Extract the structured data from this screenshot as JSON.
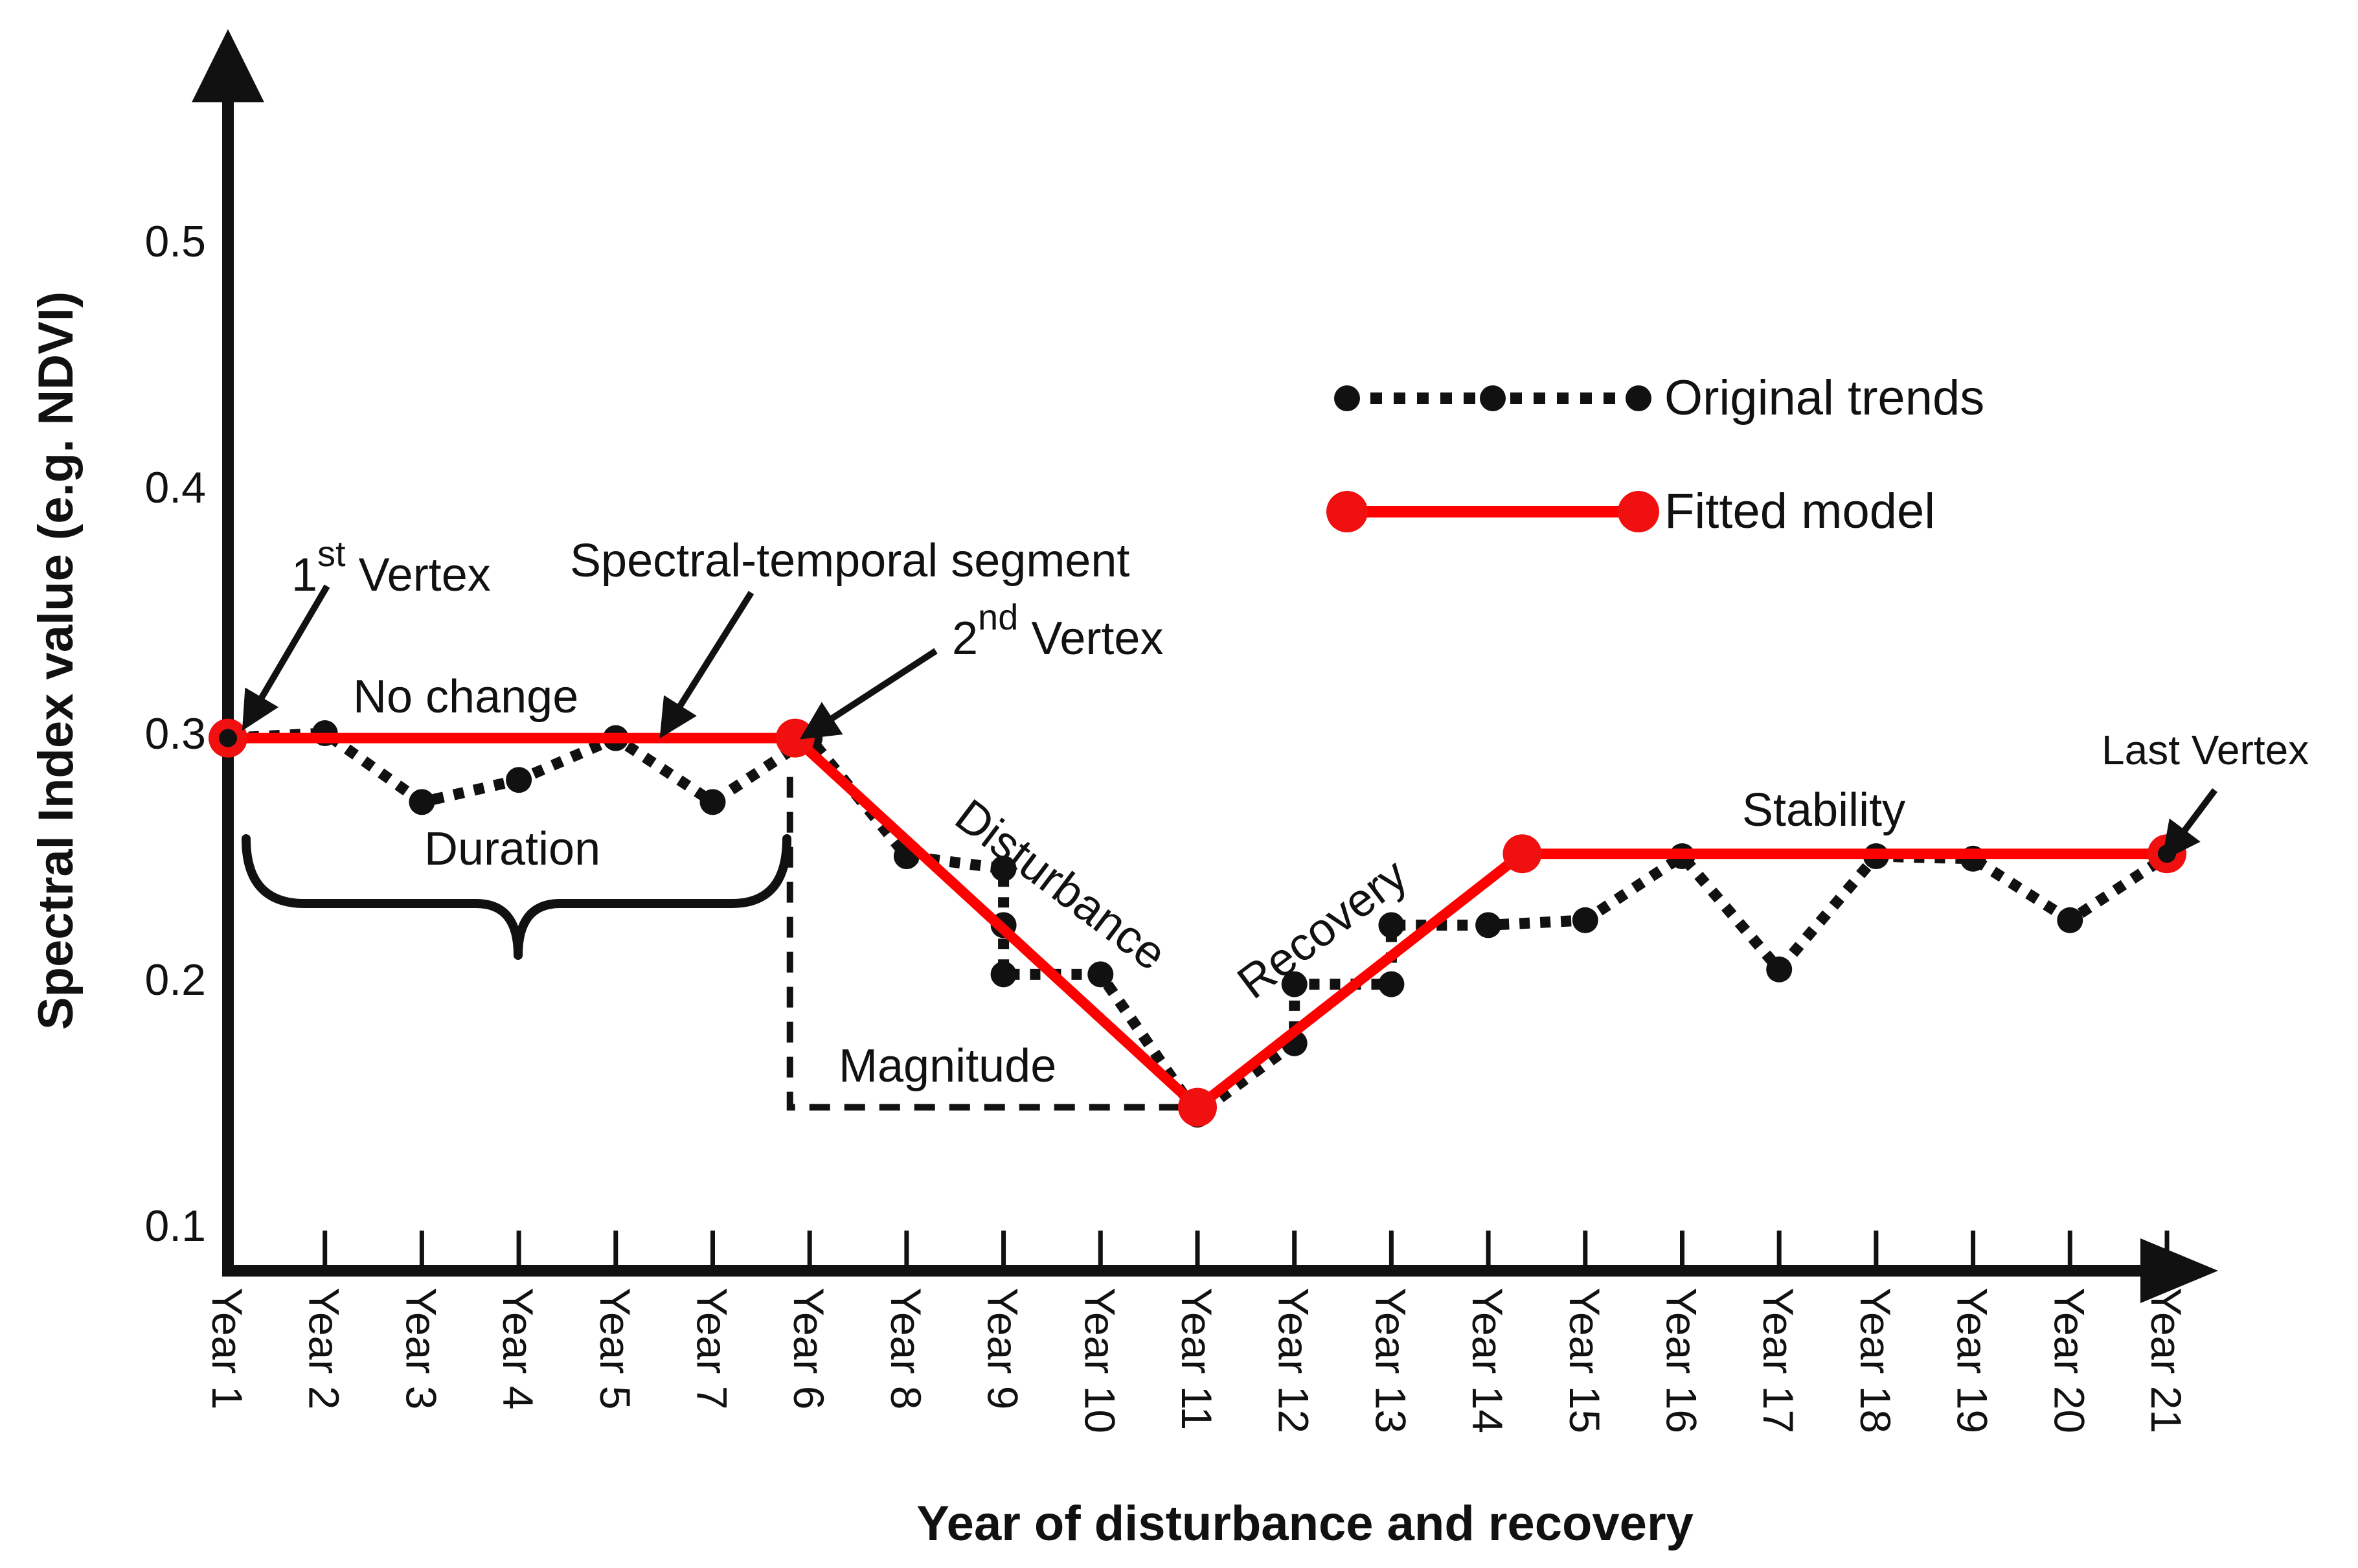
{
  "chart_data": {
    "type": "line",
    "title": "",
    "xlabel": "Year of disturbance and recovery",
    "ylabel": "Spectral Index value (e.g. NDVI)",
    "ylim": [
      0.1,
      0.55
    ],
    "yticks": [
      0.1,
      0.2,
      0.3,
      0.4,
      0.5
    ],
    "ytick_labels": [
      "0.1",
      "0.2",
      "0.3",
      "0.4",
      "0.5"
    ],
    "categories": [
      "Year 1",
      "Year 2",
      "Year 3",
      "Year 4",
      "Year 5",
      "Year 7",
      "Year 6",
      "Year 8",
      "Year 9",
      "Year 10",
      "Year 11",
      "Year 12",
      "Year 13",
      "Year 14",
      "Year 15",
      "Year 16",
      "Year 17",
      "Year 18",
      "Year 19",
      "Year 20",
      "Year 21"
    ],
    "legend_position": "top-right",
    "colors": {
      "original": "#111111",
      "fitted": "#ff0000",
      "fitted_marker": "#f01010"
    },
    "series": [
      {
        "name": "Original trends",
        "style": "dotted-with-markers",
        "points": [
          {
            "x": 0,
            "y": 0.298
          },
          {
            "x": 1,
            "y": 0.3
          },
          {
            "x": 2,
            "y": 0.272
          },
          {
            "x": 3,
            "y": 0.281
          },
          {
            "x": 4,
            "y": 0.298
          },
          {
            "x": 5,
            "y": 0.272
          },
          {
            "x": 6,
            "y": 0.298
          },
          {
            "x": 7,
            "y": 0.25
          },
          {
            "x": 8,
            "y": 0.245
          },
          {
            "x": 8,
            "y": 0.222
          },
          {
            "x": 8,
            "y": 0.202
          },
          {
            "x": 9,
            "y": 0.202
          },
          {
            "x": 10,
            "y": 0.145
          },
          {
            "x": 11,
            "y": 0.174
          },
          {
            "x": 11,
            "y": 0.198
          },
          {
            "x": 12,
            "y": 0.198
          },
          {
            "x": 12,
            "y": 0.222
          },
          {
            "x": 13,
            "y": 0.222
          },
          {
            "x": 14,
            "y": 0.224
          },
          {
            "x": 15,
            "y": 0.25
          },
          {
            "x": 16,
            "y": 0.204
          },
          {
            "x": 17,
            "y": 0.25
          },
          {
            "x": 18,
            "y": 0.249
          },
          {
            "x": 19,
            "y": 0.224
          },
          {
            "x": 20,
            "y": 0.25
          }
        ]
      },
      {
        "name": "Fitted model",
        "style": "solid-with-vertices",
        "points": [
          {
            "x": 0,
            "y": 0.298
          },
          {
            "x": 5.85,
            "y": 0.298
          },
          {
            "x": 10,
            "y": 0.148
          },
          {
            "x": 13.35,
            "y": 0.251
          },
          {
            "x": 20,
            "y": 0.251
          }
        ]
      }
    ],
    "annotations": {
      "first_vertex_base": "1",
      "first_vertex_sup": "st",
      "first_vertex_rest": " Vertex",
      "second_vertex_base": "2",
      "second_vertex_sup": "nd",
      "second_vertex_rest": " Vertex",
      "last_vertex": "Last Vertex",
      "segment": "Spectral-temporal segment",
      "no_change": "No change",
      "duration": "Duration",
      "disturbance": "Disturbance",
      "magnitude": "Magnitude",
      "recovery": "Recovery",
      "stability": "Stability"
    },
    "legend": {
      "original": "Original trends",
      "fitted": "Fitted model"
    }
  }
}
